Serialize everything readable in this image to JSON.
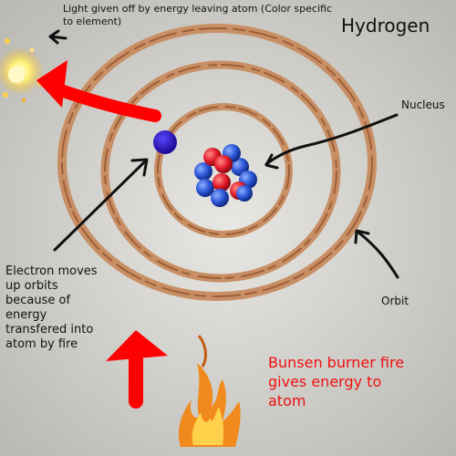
{
  "title": "Hydrogen",
  "labels": {
    "light": "Light given off by energy leaving atom (Color specific to element)",
    "nucleus": "Nucleus",
    "orbit": "Orbit",
    "electron": "Electron moves\nup orbits\nbecause of\nenergy\ntransfered into\natom by fire",
    "fire": "Bunsen burner fire\ngives energy to\natom"
  },
  "colors": {
    "background": "#dcdbd6",
    "orbit": "#c98f64",
    "proton": "#e31b2a",
    "neutron": "#2a55d6",
    "electron": "#2b11c4",
    "energy_arrow": "#ff0000",
    "flame": "#f08a1c",
    "light_glow": "#fff27a"
  }
}
